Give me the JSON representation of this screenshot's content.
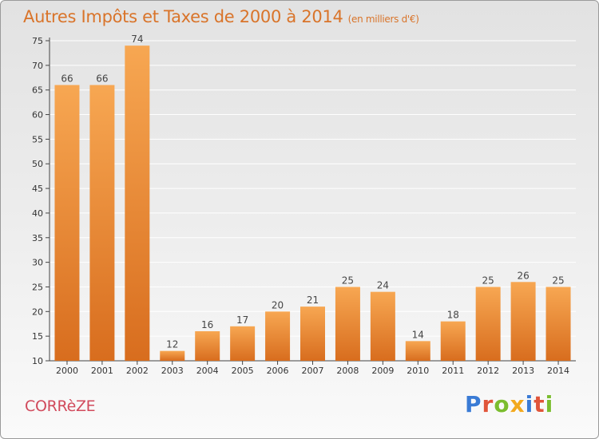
{
  "chart_title": "Autres Impôts et Taxes de 2000 à 2014",
  "chart_unit": "(en milliers d'€)",
  "location": "CORRèZE",
  "brand": {
    "text": "Proxiti",
    "letters": [
      {
        "char": "P",
        "color": "#3a7bd5"
      },
      {
        "char": "r",
        "color": "#e0553a"
      },
      {
        "char": "o",
        "color": "#7bbd2f"
      },
      {
        "char": "x",
        "color": "#f2a91e"
      },
      {
        "char": "i",
        "color": "#3a7bd5"
      },
      {
        "char": "t",
        "color": "#e0553a"
      },
      {
        "char": "i",
        "color": "#7bbd2f"
      }
    ]
  },
  "colors": {
    "bar_top": "#f7a752",
    "bar_bottom": "#d86d1e",
    "title": "#d9742a",
    "location": "#d14a5c"
  },
  "chart_data": {
    "type": "bar",
    "categories": [
      "2000",
      "2001",
      "2002",
      "2003",
      "2004",
      "2005",
      "2006",
      "2007",
      "2008",
      "2009",
      "2010",
      "2011",
      "2012",
      "2013",
      "2014"
    ],
    "values": [
      66,
      66,
      74,
      12,
      16,
      17,
      20,
      21,
      25,
      24,
      14,
      18,
      25,
      26,
      25
    ],
    "ylim": [
      10,
      75
    ],
    "yticks": [
      10,
      15,
      20,
      25,
      30,
      35,
      40,
      45,
      50,
      55,
      60,
      65,
      70,
      75
    ],
    "grid": true,
    "data_labels": true
  }
}
